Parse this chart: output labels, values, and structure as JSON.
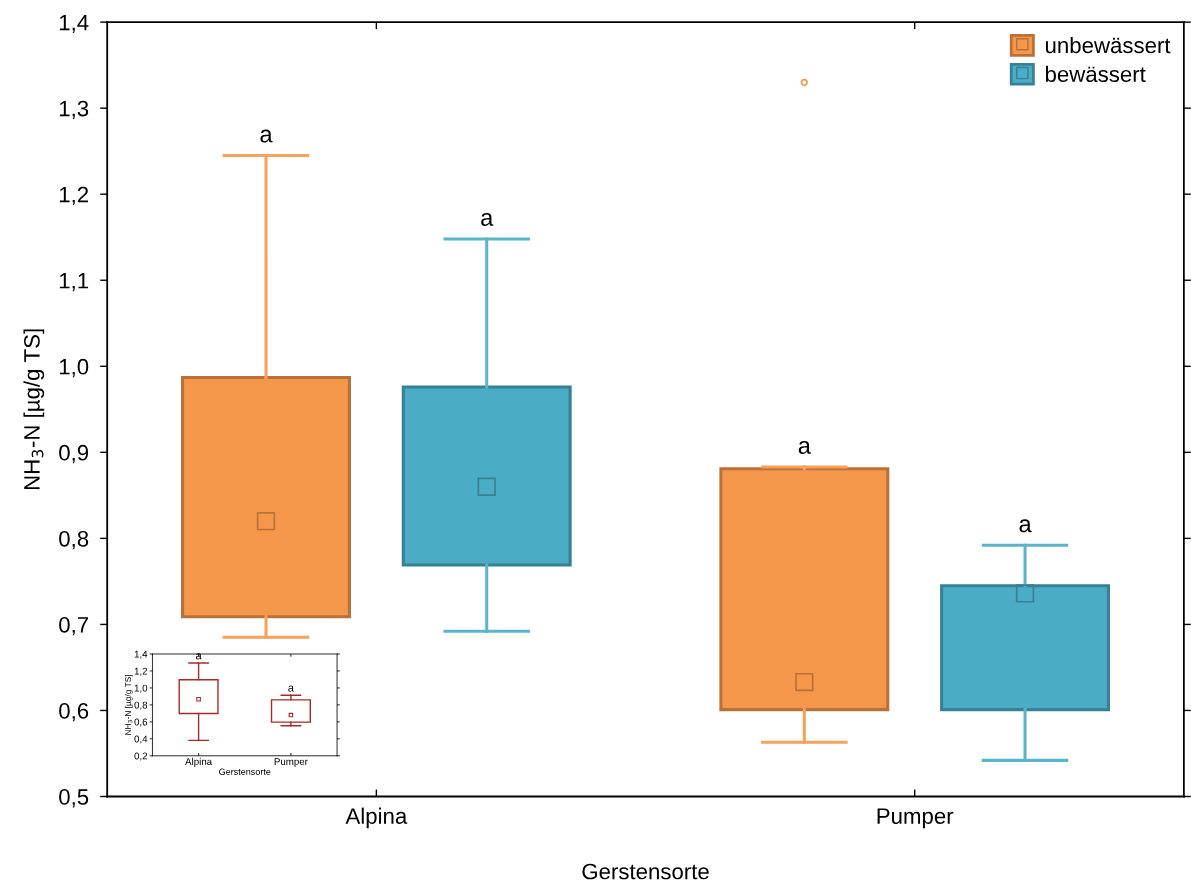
{
  "chart_data": [
    {
      "type": "box",
      "xlabel": "Gerstensorte",
      "ylabel": "NH$_{3}$-N [µg/g TS]",
      "categories": [
        "Alpina",
        "Pumper"
      ],
      "ylim": [
        0.5,
        1.4
      ],
      "yticks": [
        {
          "value": 0.5,
          "label": "0,5"
        },
        {
          "value": 0.6,
          "label": "0,6"
        },
        {
          "value": 0.7,
          "label": "0,7"
        },
        {
          "value": 0.8,
          "label": "0,8"
        },
        {
          "value": 0.9,
          "label": "0,9"
        },
        {
          "value": 1.0,
          "label": "1,0"
        },
        {
          "value": 1.1,
          "label": "1,1"
        },
        {
          "value": 1.2,
          "label": "1,2"
        },
        {
          "value": 1.3,
          "label": "1,3"
        },
        {
          "value": 1.4,
          "label": "1,4"
        }
      ],
      "legend": "top right",
      "grid": false,
      "marker": "square",
      "series": [
        {
          "name": "unbewässert",
          "color": "#f5974a",
          "boxes": [
            {
              "low": 0.685,
              "q1": 0.709,
              "median": 0.82,
              "q3": 0.987,
              "high": 1.245
            },
            {
              "low": 0.563,
              "q1": 0.601,
              "median": 0.633,
              "q3": 0.881,
              "high": 0.883,
              "outliers": [
                1.33
              ]
            }
          ]
        },
        {
          "name": "bewässert",
          "color": "#4aacc5",
          "boxes": [
            {
              "low": 0.692,
              "q1": 0.769,
              "median": 0.86,
              "q3": 0.976,
              "high": 1.148
            },
            {
              "low": 0.542,
              "q1": 0.601,
              "median": 0.736,
              "q3": 0.745,
              "high": 0.792
            }
          ]
        }
      ],
      "annotations": [
        "a",
        "a",
        "a",
        "a"
      ]
    },
    {
      "type": "box",
      "xlabel": "Gerstensorte",
      "ylabel": "NH$_{3}$-N [µg/g TS]",
      "categories": [
        "Alpina",
        "Pumper"
      ],
      "ylim": [
        0.2,
        1.4
      ],
      "yticks": [
        {
          "value": 0.2,
          "label": "0,2"
        },
        {
          "value": 0.4,
          "label": "0,4"
        },
        {
          "value": 0.6,
          "label": "0,6"
        },
        {
          "value": 0.8,
          "label": "0,8"
        },
        {
          "value": 1.0,
          "label": "1,0"
        },
        {
          "value": 1.2,
          "label": "1,2"
        },
        {
          "value": 1.4,
          "label": "1,4"
        }
      ],
      "grid": false,
      "marker": "square",
      "series": [
        {
          "color": "#a52a2a",
          "boxes": [
            {
              "low": 0.382,
              "q1": 0.699,
              "median": 0.866,
              "q3": 1.096,
              "high": 1.294
            },
            {
              "low": 0.555,
              "q1": 0.597,
              "median": 0.68,
              "q3": 0.859,
              "high": 0.914
            }
          ]
        }
      ],
      "annotations": [
        "a",
        "a"
      ]
    }
  ]
}
